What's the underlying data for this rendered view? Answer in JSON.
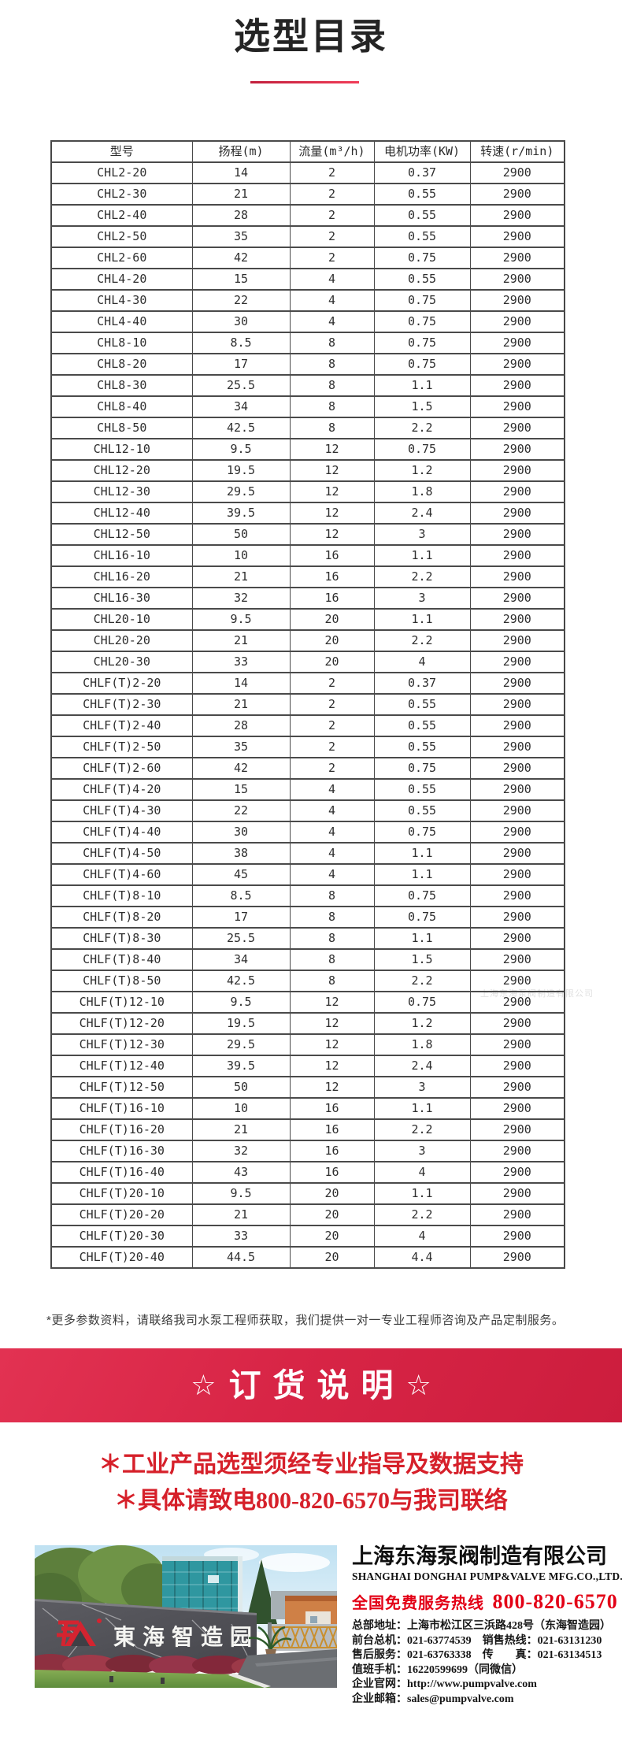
{
  "title": "选型目录",
  "colors": {
    "accent_red": "#d82546",
    "notice_red": "#d6202a",
    "hotline_red": "#e30016",
    "logo_red": "#d42430"
  },
  "table": {
    "headers": [
      "型号",
      "扬程(m)",
      "流量(m³/h)",
      "电机功率(KW)",
      "转速(r/min)"
    ],
    "rows": [
      [
        "CHL2-20",
        "14",
        "2",
        "0.37",
        "2900"
      ],
      [
        "CHL2-30",
        "21",
        "2",
        "0.55",
        "2900"
      ],
      [
        "CHL2-40",
        "28",
        "2",
        "0.55",
        "2900"
      ],
      [
        "CHL2-50",
        "35",
        "2",
        "0.55",
        "2900"
      ],
      [
        "CHL2-60",
        "42",
        "2",
        "0.75",
        "2900"
      ],
      [
        "CHL4-20",
        "15",
        "4",
        "0.55",
        "2900"
      ],
      [
        "CHL4-30",
        "22",
        "4",
        "0.75",
        "2900"
      ],
      [
        "CHL4-40",
        "30",
        "4",
        "0.75",
        "2900"
      ],
      [
        "CHL8-10",
        "8.5",
        "8",
        "0.75",
        "2900"
      ],
      [
        "CHL8-20",
        "17",
        "8",
        "0.75",
        "2900"
      ],
      [
        "CHL8-30",
        "25.5",
        "8",
        "1.1",
        "2900"
      ],
      [
        "CHL8-40",
        "34",
        "8",
        "1.5",
        "2900"
      ],
      [
        "CHL8-50",
        "42.5",
        "8",
        "2.2",
        "2900"
      ],
      [
        "CHL12-10",
        "9.5",
        "12",
        "0.75",
        "2900"
      ],
      [
        "CHL12-20",
        "19.5",
        "12",
        "1.2",
        "2900"
      ],
      [
        "CHL12-30",
        "29.5",
        "12",
        "1.8",
        "2900"
      ],
      [
        "CHL12-40",
        "39.5",
        "12",
        "2.4",
        "2900"
      ],
      [
        "CHL12-50",
        "50",
        "12",
        "3",
        "2900"
      ],
      [
        "CHL16-10",
        "10",
        "16",
        "1.1",
        "2900"
      ],
      [
        "CHL16-20",
        "21",
        "16",
        "2.2",
        "2900"
      ],
      [
        "CHL16-30",
        "32",
        "16",
        "3",
        "2900"
      ],
      [
        "CHL20-10",
        "9.5",
        "20",
        "1.1",
        "2900"
      ],
      [
        "CHL20-20",
        "21",
        "20",
        "2.2",
        "2900"
      ],
      [
        "CHL20-30",
        "33",
        "20",
        "4",
        "2900"
      ],
      [
        "CHLF(T)2-20",
        "14",
        "2",
        "0.37",
        "2900"
      ],
      [
        "CHLF(T)2-30",
        "21",
        "2",
        "0.55",
        "2900"
      ],
      [
        "CHLF(T)2-40",
        "28",
        "2",
        "0.55",
        "2900"
      ],
      [
        "CHLF(T)2-50",
        "35",
        "2",
        "0.55",
        "2900"
      ],
      [
        "CHLF(T)2-60",
        "42",
        "2",
        "0.75",
        "2900"
      ],
      [
        "CHLF(T)4-20",
        "15",
        "4",
        "0.55",
        "2900"
      ],
      [
        "CHLF(T)4-30",
        "22",
        "4",
        "0.55",
        "2900"
      ],
      [
        "CHLF(T)4-40",
        "30",
        "4",
        "0.75",
        "2900"
      ],
      [
        "CHLF(T)4-50",
        "38",
        "4",
        "1.1",
        "2900"
      ],
      [
        "CHLF(T)4-60",
        "45",
        "4",
        "1.1",
        "2900"
      ],
      [
        "CHLF(T)8-10",
        "8.5",
        "8",
        "0.75",
        "2900"
      ],
      [
        "CHLF(T)8-20",
        "17",
        "8",
        "0.75",
        "2900"
      ],
      [
        "CHLF(T)8-30",
        "25.5",
        "8",
        "1.1",
        "2900"
      ],
      [
        "CHLF(T)8-40",
        "34",
        "8",
        "1.5",
        "2900"
      ],
      [
        "CHLF(T)8-50",
        "42.5",
        "8",
        "2.2",
        "2900"
      ],
      [
        "CHLF(T)12-10",
        "9.5",
        "12",
        "0.75",
        "2900"
      ],
      [
        "CHLF(T)12-20",
        "19.5",
        "12",
        "1.2",
        "2900"
      ],
      [
        "CHLF(T)12-30",
        "29.5",
        "12",
        "1.8",
        "2900"
      ],
      [
        "CHLF(T)12-40",
        "39.5",
        "12",
        "2.4",
        "2900"
      ],
      [
        "CHLF(T)12-50",
        "50",
        "12",
        "3",
        "2900"
      ],
      [
        "CHLF(T)16-10",
        "10",
        "16",
        "1.1",
        "2900"
      ],
      [
        "CHLF(T)16-20",
        "21",
        "16",
        "2.2",
        "2900"
      ],
      [
        "CHLF(T)16-30",
        "32",
        "16",
        "3",
        "2900"
      ],
      [
        "CHLF(T)16-40",
        "43",
        "16",
        "4",
        "2900"
      ],
      [
        "CHLF(T)20-10",
        "9.5",
        "20",
        "1.1",
        "2900"
      ],
      [
        "CHLF(T)20-20",
        "21",
        "20",
        "2.2",
        "2900"
      ],
      [
        "CHLF(T)20-30",
        "33",
        "20",
        "4",
        "2900"
      ],
      [
        "CHLF(T)20-40",
        "44.5",
        "20",
        "4.4",
        "2900"
      ]
    ]
  },
  "footnote": "*更多参数资料，请联络我司水泵工程师获取，我们提供一对一专业工程师咨询及产品定制服务。",
  "watermark": "上海东海泵阀制造有限公司",
  "banner": {
    "star": "☆",
    "title": "订货说明"
  },
  "notices": [
    "＊工业产品选型须经专业指导及数据支持",
    "＊具体请致电800-820-6570与我司联络"
  ],
  "company": {
    "name_cn": "上海东海泵阀制造有限公司",
    "name_en": "SHANGHAI DONGHAI PUMP&VALVE MFG.CO.,LTD.",
    "hotline_label": "全国免费服务热线",
    "hotline_number": "800-820-6570",
    "contact_lines": [
      "总部地址：上海市松江区三浜路428号（东海智造园）",
      "前台总机：021-63774539　销售热线：021-63131230",
      "售后服务：021-63763338　传　　真：021-63134513",
      "值班手机：16220599699（同微信）",
      "企业官网：http://www.pumpvalve.com",
      "企业邮箱：sales@pumpvalve.com"
    ]
  },
  "photo": {
    "sign_text": "東海智造园"
  }
}
